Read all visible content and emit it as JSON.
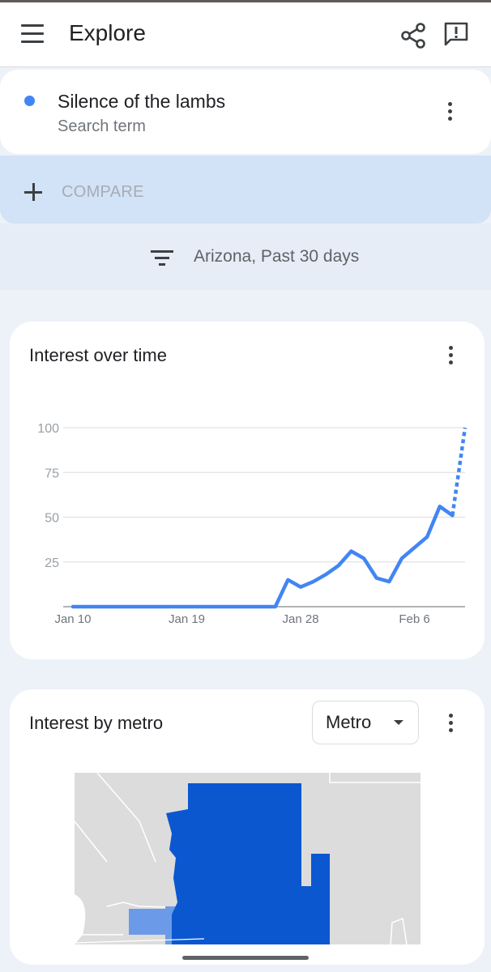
{
  "appbar": {
    "title": "Explore",
    "menu_icon": "menu-icon",
    "share_icon": "share-icon",
    "feedback_icon": "feedback-icon"
  },
  "term": {
    "name": "Silence of the lambs",
    "type": "Search term",
    "color": "#4285f4"
  },
  "compare": {
    "label": "COMPARE"
  },
  "filter": {
    "text": "Arizona, Past 30 days"
  },
  "interest_over_time": {
    "title": "Interest over time"
  },
  "chart_data": {
    "type": "line",
    "title": "Interest over time",
    "xlabel": "",
    "ylabel": "",
    "ylim": [
      0,
      100
    ],
    "y_ticks": [
      "100",
      "75",
      "50",
      "25"
    ],
    "x_ticks": [
      "Jan 10",
      "Jan 19",
      "Jan 28",
      "Feb 6"
    ],
    "x_tick_days": [
      0,
      9,
      18,
      27
    ],
    "series": [
      {
        "color": "#4285f4",
        "points": [
          [
            0,
            0
          ],
          [
            1,
            0
          ],
          [
            2,
            0
          ],
          [
            3,
            0
          ],
          [
            4,
            0
          ],
          [
            5,
            0
          ],
          [
            6,
            0
          ],
          [
            7,
            0
          ],
          [
            8,
            0
          ],
          [
            9,
            0
          ],
          [
            10,
            0
          ],
          [
            11,
            0
          ],
          [
            12,
            0
          ],
          [
            13,
            0
          ],
          [
            14,
            0
          ],
          [
            15,
            0
          ],
          [
            16,
            0
          ],
          [
            17,
            15
          ],
          [
            18,
            11
          ],
          [
            19,
            14
          ],
          [
            20,
            18
          ],
          [
            21,
            23
          ],
          [
            22,
            31
          ],
          [
            23,
            27
          ],
          [
            24,
            16
          ],
          [
            25,
            14
          ],
          [
            26,
            27
          ],
          [
            27,
            33
          ],
          [
            28,
            39
          ],
          [
            29,
            56
          ],
          [
            30,
            51
          ]
        ],
        "partial_points": [
          [
            30,
            51
          ],
          [
            31,
            100
          ]
        ]
      }
    ],
    "grid": true
  },
  "interest_by_metro": {
    "title": "Interest by metro",
    "dropdown_value": "Metro",
    "map_colors": {
      "background": "#dcdcdc",
      "high": "#0b57d0",
      "mid": "#6b9be8"
    }
  }
}
